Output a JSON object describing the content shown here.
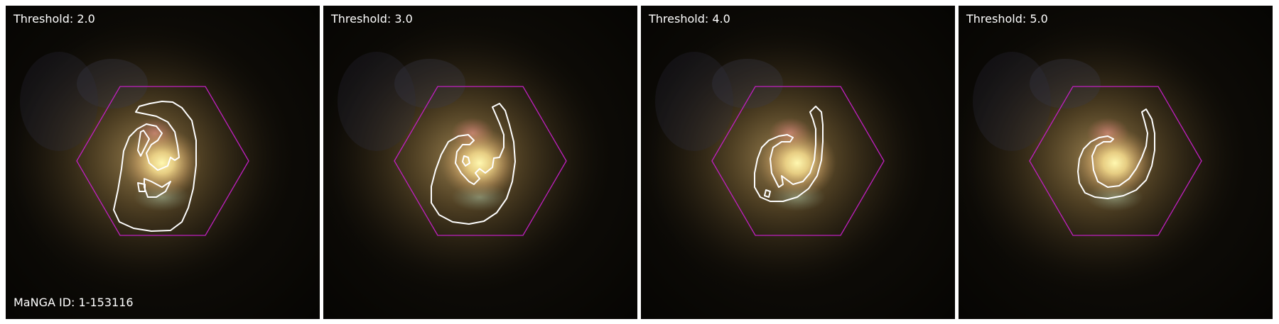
{
  "panels": [
    {
      "threshold_label": "Threshold: 2.0"
    },
    {
      "threshold_label": "Threshold: 3.0"
    },
    {
      "threshold_label": "Threshold: 4.0"
    },
    {
      "threshold_label": "Threshold: 5.0"
    }
  ],
  "galaxy_id_label": "MaNGA ID: 1-153116",
  "colors": {
    "ifu_hexagon": "#c020c0",
    "contour": "#ffffff",
    "background": "#0c0a06"
  },
  "icons": {
    "hexagon": "ifu-footprint-hexagon",
    "contour": "spiral-arm-contour"
  }
}
